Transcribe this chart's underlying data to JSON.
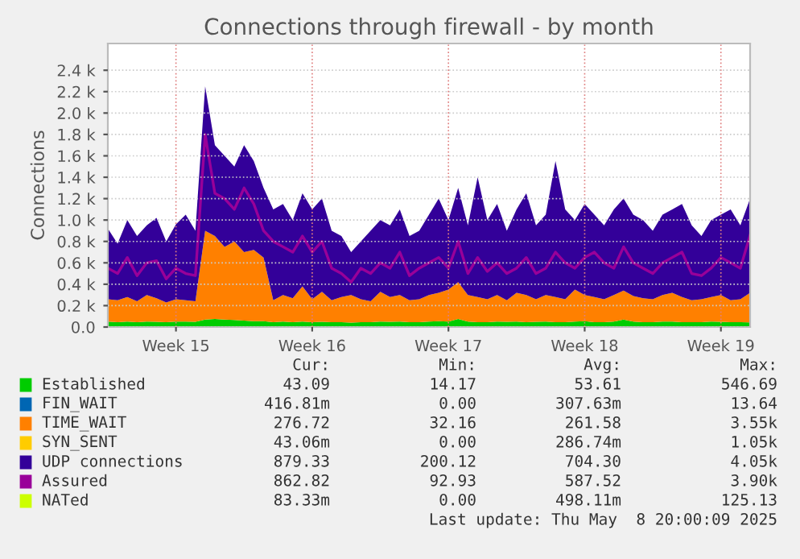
{
  "chart_data": {
    "type": "area",
    "stacked": true,
    "title": "Connections through firewall - by month",
    "ylabel": "Connections",
    "categories": [
      null,
      null,
      null,
      null,
      null,
      null,
      null,
      "Week 15",
      null,
      null,
      null,
      null,
      null,
      null,
      null,
      null,
      null,
      null,
      null,
      null,
      null,
      "Week 16",
      null,
      null,
      null,
      null,
      null,
      null,
      null,
      null,
      null,
      null,
      null,
      null,
      null,
      "Week 17",
      null,
      null,
      null,
      null,
      null,
      null,
      null,
      null,
      null,
      null,
      null,
      null,
      null,
      "Week 18",
      null,
      null,
      null,
      null,
      null,
      null,
      null,
      null,
      null,
      null,
      null,
      null,
      null,
      "Week 19",
      null,
      null,
      null
    ],
    "ylim": [
      0,
      2650
    ],
    "yticks": [
      {
        "value": 0,
        "label": "0.0"
      },
      {
        "value": 200,
        "label": "0.2 k"
      },
      {
        "value": 400,
        "label": "0.4 k"
      },
      {
        "value": 600,
        "label": "0.6 k"
      },
      {
        "value": 800,
        "label": "0.8 k"
      },
      {
        "value": 1000,
        "label": "1.0 k"
      },
      {
        "value": 1200,
        "label": "1.2 k"
      },
      {
        "value": 1400,
        "label": "1.4 k"
      },
      {
        "value": 1600,
        "label": "1.6 k"
      },
      {
        "value": 1800,
        "label": "1.8 k"
      },
      {
        "value": 2000,
        "label": "2.0 k"
      },
      {
        "value": 2200,
        "label": "2.2 k"
      },
      {
        "value": 2400,
        "label": "2.4 k"
      }
    ],
    "grid": true,
    "legend": "bottom",
    "series": [
      {
        "name": "Established",
        "color": "#00cc00",
        "values": [
          50,
          45,
          50,
          45,
          50,
          48,
          45,
          50,
          50,
          48,
          70,
          75,
          70,
          65,
          60,
          55,
          55,
          45,
          50,
          45,
          50,
          45,
          48,
          45,
          45,
          42,
          45,
          45,
          50,
          48,
          50,
          45,
          45,
          50,
          55,
          50,
          75,
          50,
          45,
          45,
          50,
          48,
          50,
          45,
          48,
          50,
          45,
          45,
          50,
          55,
          45,
          45,
          50,
          70,
          50,
          45,
          45,
          50,
          50,
          45,
          45,
          45,
          50,
          48,
          45,
          45,
          43
        ]
      },
      {
        "name": "FIN_WAIT",
        "color": "#0066b3",
        "values": [
          null,
          null,
          null,
          null,
          null,
          null,
          null,
          null,
          null,
          null,
          null,
          null,
          null,
          null,
          null,
          null,
          null,
          null,
          null,
          null,
          null,
          null,
          null,
          null,
          null,
          null,
          null,
          null,
          null,
          null,
          null,
          null,
          null,
          null,
          null,
          null,
          null,
          null,
          null,
          null,
          null,
          null,
          null,
          null,
          null,
          null,
          null,
          null,
          null,
          null,
          null,
          null,
          null,
          null,
          null,
          null,
          null,
          null,
          null,
          null,
          null,
          null,
          null,
          null,
          null,
          null,
          null
        ]
      },
      {
        "name": "TIME_WAIT",
        "color": "#ff8000",
        "values": [
          210,
          205,
          230,
          195,
          250,
          222,
          185,
          210,
          200,
          192,
          830,
          775,
          680,
          735,
          640,
          665,
          595,
          205,
          250,
          225,
          330,
          215,
          282,
          205,
          235,
          258,
          215,
          195,
          280,
          232,
          250,
          205,
          215,
          250,
          265,
          300,
          345,
          250,
          235,
          215,
          250,
          202,
          270,
          255,
          212,
          250,
          235,
          215,
          300,
          245,
          235,
          215,
          250,
          270,
          240,
          225,
          215,
          250,
          270,
          235,
          205,
          215,
          230,
          252,
          205,
          215,
          277
        ]
      },
      {
        "name": "SYN_SENT",
        "color": "#ffcc00",
        "values": [
          null,
          null,
          null,
          null,
          null,
          null,
          null,
          null,
          null,
          null,
          null,
          null,
          null,
          null,
          null,
          null,
          null,
          null,
          null,
          null,
          null,
          null,
          null,
          null,
          null,
          null,
          null,
          null,
          null,
          null,
          null,
          null,
          null,
          null,
          null,
          null,
          null,
          null,
          null,
          null,
          null,
          null,
          null,
          null,
          null,
          null,
          null,
          null,
          null,
          null,
          null,
          null,
          null,
          null,
          null,
          null,
          null,
          null,
          null,
          null,
          null,
          null,
          null,
          null,
          null,
          null,
          null
        ]
      },
      {
        "name": "UDP connections",
        "color": "#330099",
        "values": [
          660,
          530,
          720,
          610,
          650,
          750,
          570,
          700,
          800,
          660,
          1350,
          850,
          850,
          700,
          1000,
          830,
          650,
          850,
          850,
          730,
          870,
          840,
          870,
          650,
          570,
          400,
          540,
          660,
          670,
          670,
          800,
          600,
          640,
          750,
          880,
          650,
          880,
          650,
          1120,
          740,
          850,
          650,
          780,
          950,
          690,
          750,
          1270,
          840,
          650,
          850,
          770,
          690,
          800,
          860,
          760,
          730,
          640,
          750,
          780,
          870,
          700,
          590,
          720,
          750,
          850,
          690,
          880
        ]
      },
      {
        "name": "Assured",
        "color": "#990099",
        "type": "line",
        "values": [
          550,
          500,
          650,
          480,
          600,
          620,
          450,
          550,
          500,
          480,
          1800,
          1250,
          1200,
          1100,
          1300,
          1150,
          900,
          800,
          750,
          700,
          850,
          700,
          800,
          550,
          500,
          420,
          550,
          500,
          600,
          550,
          700,
          480,
          550,
          600,
          650,
          550,
          800,
          500,
          650,
          520,
          600,
          500,
          550,
          650,
          500,
          550,
          700,
          600,
          550,
          650,
          700,
          600,
          550,
          750,
          600,
          550,
          500,
          600,
          650,
          700,
          500,
          480,
          550,
          650,
          600,
          550,
          860
        ]
      },
      {
        "name": "NATed",
        "color": "#ccff00",
        "type": "line",
        "values": [
          null,
          null,
          null,
          null,
          null,
          null,
          null,
          null,
          null,
          null,
          null,
          null,
          null,
          null,
          null,
          null,
          null,
          null,
          null,
          null,
          null,
          null,
          null,
          null,
          null,
          null,
          null,
          null,
          null,
          null,
          null,
          null,
          null,
          null,
          null,
          null,
          null,
          null,
          null,
          null,
          null,
          null,
          null,
          null,
          null,
          null,
          null,
          null,
          null,
          null,
          null,
          null,
          null,
          null,
          null,
          null,
          null,
          null,
          null,
          null,
          null,
          null,
          null,
          null,
          null,
          null,
          null
        ]
      }
    ],
    "annotations": [
      "Cur:",
      "Min:",
      "Avg:",
      "Max:",
      "43.09",
      "14.17",
      "53.61",
      "546.69",
      "416.81m",
      "0.00",
      "307.63m",
      "13.64",
      "276.72",
      "32.16",
      "261.58",
      "3.55k",
      "43.06m",
      "0.00",
      "286.74m",
      "1.05k",
      "879.33",
      "200.12",
      "704.30",
      "4.05k",
      "862.82",
      "92.93",
      "587.52",
      "3.90k",
      "83.33m",
      "0.00",
      "498.11m",
      "125.13",
      "Last update: Thu May  8 20:00:09 2025"
    ]
  }
}
